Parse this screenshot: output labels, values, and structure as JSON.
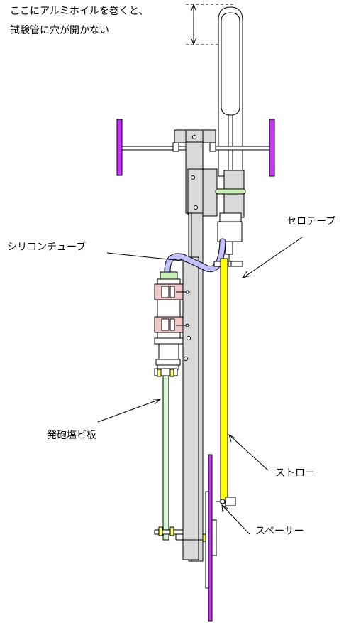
{
  "annotations": {
    "foil_note_line1": "ここにアルミホイルを巻くと、",
    "foil_note_line2": "試験管に穴が開かない",
    "cellophane_tape": "セロテープ",
    "silicone_tube": "シリコンチューブ",
    "foam_pvc_board": "発砲塩ビ板",
    "straw": "ストロー",
    "spacer": "スペーサー"
  },
  "colors": {
    "outline": "#000000",
    "frame_gray": "#d9d9d9",
    "stand_purple": "#cc33ff",
    "straw_yellow": "#ffff00",
    "tube_lavender": "#c0c0ff",
    "clamp_pink": "#f0c8c8",
    "board_green": "#d6f5d6",
    "band_green": "#c8f0b4",
    "nut_yellow": "#ffff66"
  }
}
